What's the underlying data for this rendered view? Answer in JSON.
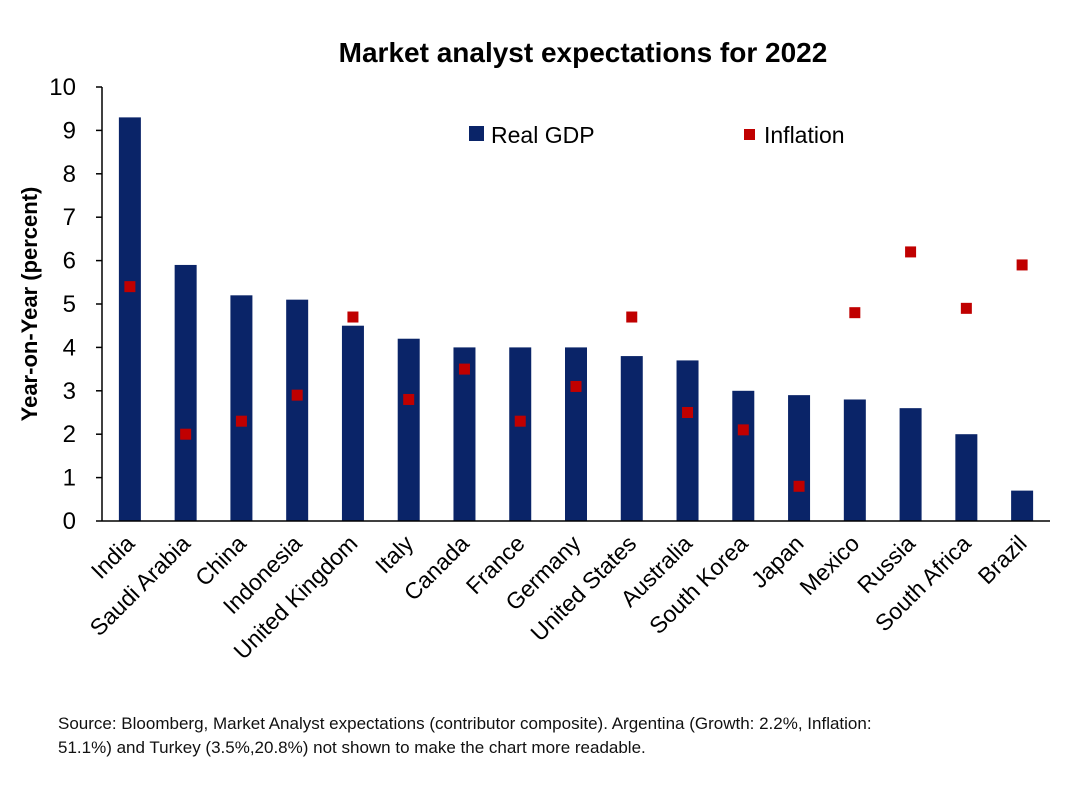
{
  "chart_data": {
    "type": "bar",
    "title": "Market analyst expectations for 2022",
    "xlabel": "",
    "ylabel": "Year-on-Year (percent)",
    "ylim": [
      0,
      10
    ],
    "yticks": [
      0,
      1,
      2,
      3,
      4,
      5,
      6,
      7,
      8,
      9,
      10
    ],
    "categories": [
      "India",
      "Saudi Arabia",
      "China",
      "Indonesia",
      "United Kingdom",
      "Italy",
      "Canada",
      "France",
      "Germany",
      "United States",
      "Australia",
      "South Korea",
      "Japan",
      "Mexico",
      "Russia",
      "South Africa",
      "Brazil"
    ],
    "series": [
      {
        "name": "Real GDP",
        "kind": "bar",
        "color": "#0a2468",
        "values": [
          9.3,
          5.9,
          5.2,
          5.1,
          4.5,
          4.2,
          4.0,
          4.0,
          4.0,
          3.8,
          3.7,
          3.0,
          2.9,
          2.8,
          2.6,
          2.0,
          0.7
        ]
      },
      {
        "name": "Inflation",
        "kind": "marker",
        "color": "#c00000",
        "values": [
          5.4,
          2.0,
          2.3,
          2.9,
          4.7,
          2.8,
          3.5,
          2.3,
          3.1,
          4.7,
          2.5,
          2.1,
          0.8,
          4.8,
          6.2,
          4.9,
          5.9
        ]
      }
    ],
    "grid": false,
    "legend": "top-center"
  },
  "footnote": {
    "line1": "Source: Bloomberg, Market Analyst expectations (contributor composite). Argentina (Growth: 2.2%, Inflation:",
    "line2": "51.1%) and Turkey (3.5%,20.8%) not shown to make the chart more readable."
  }
}
